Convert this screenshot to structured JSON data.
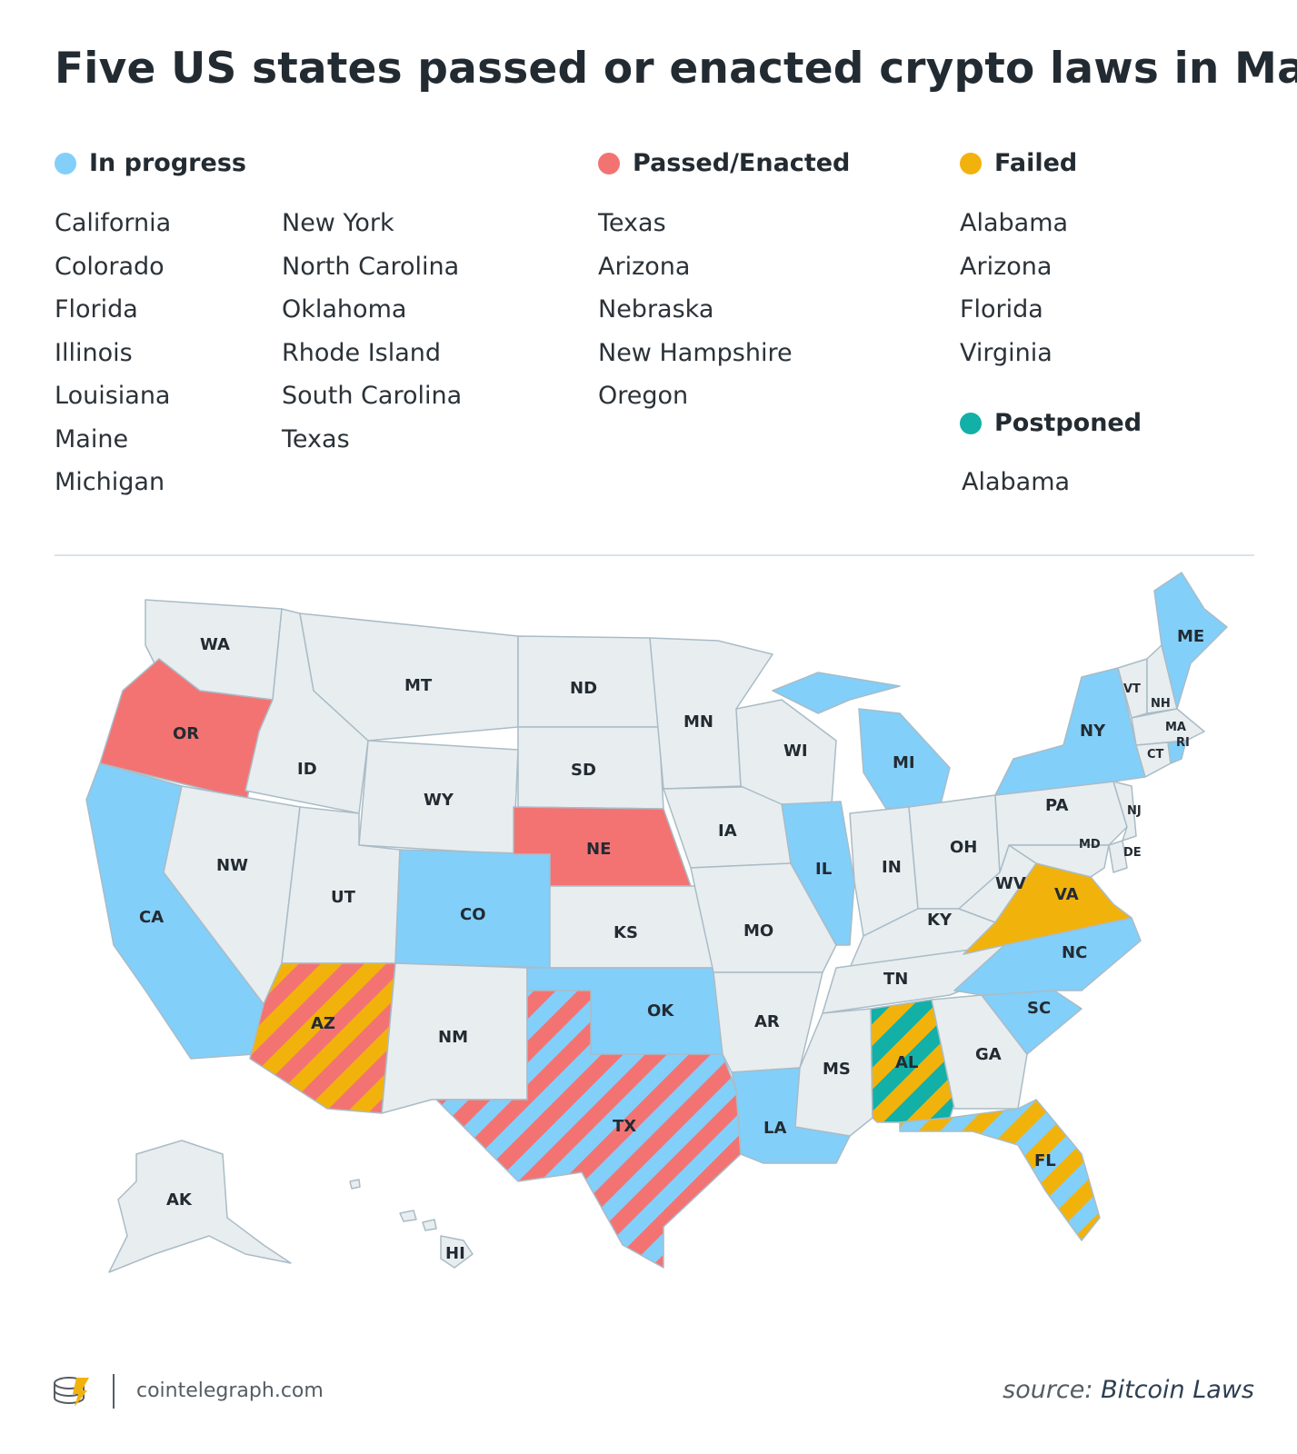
{
  "title": "Five US states passed or enacted crypto laws in May",
  "colors": {
    "in_progress": "#82cffa",
    "passed": "#f37373",
    "failed": "#f2b20c",
    "postponed": "#12b0a6",
    "neutral": "#e8edf0",
    "border": "#a9bcc6"
  },
  "legend": {
    "in_progress": {
      "label": "In progress",
      "states": [
        "California",
        "Colorado",
        "Florida",
        "Illinois",
        "Louisiana",
        "Maine",
        "Michigan",
        "New York",
        "North Carolina",
        "Oklahoma",
        "Rhode Island",
        "South Carolina",
        "Texas"
      ]
    },
    "passed": {
      "label": "Passed/Enacted",
      "states": [
        "Texas",
        "Arizona",
        "Nebraska",
        "New Hampshire",
        "Oregon"
      ]
    },
    "failed": {
      "label": "Failed",
      "states": [
        "Alabama",
        "Arizona",
        "Florida",
        "Virginia"
      ]
    },
    "postponed": {
      "label": "Postponed",
      "states": [
        "Alabama"
      ]
    }
  },
  "map_labels": {
    "WA": "WA",
    "OR": "OR",
    "CA": "CA",
    "ID": "ID",
    "NW": "NW",
    "MT": "MT",
    "WY": "WY",
    "UT": "UT",
    "AZ": "AZ",
    "CO": "CO",
    "NM": "NM",
    "ND": "ND",
    "SD": "SD",
    "NE": "NE",
    "KS": "KS",
    "OK": "OK",
    "TX": "TX",
    "MN": "MN",
    "IA": "IA",
    "MO": "MO",
    "AR": "AR",
    "LA": "LA",
    "WI": "WI",
    "IL": "IL",
    "MI": "MI",
    "IN": "IN",
    "OH": "OH",
    "KY": "KY",
    "TN": "TN",
    "MS": "MS",
    "AL": "AL",
    "GA": "GA",
    "FL": "FL",
    "SC": "SC",
    "NC": "NC",
    "VA": "VA",
    "WV": "WV",
    "PA": "PA",
    "NY": "NY",
    "VT": "VT",
    "NH": "NH",
    "ME": "ME",
    "MA": "MA",
    "RI": "RI",
    "CT": "CT",
    "NJ": "NJ",
    "DE": "DE",
    "MD": "MD",
    "AK": "AK",
    "HI": "HI"
  },
  "footer": {
    "logo_icon": "cointelegraph-logo-icon",
    "site": "cointelegraph.com",
    "source_prefix": "source:",
    "source_name": "Bitcoin Laws"
  }
}
